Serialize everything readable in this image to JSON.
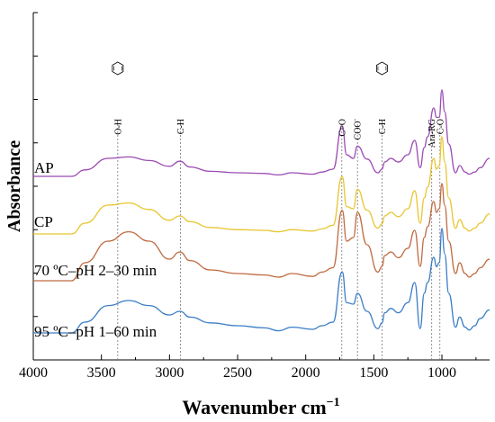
{
  "chart_data": {
    "type": "line",
    "title": "",
    "xlabel": "Wavenumber cm",
    "xlabel_superscript": "−1",
    "ylabel": "Absorbance",
    "xlim": [
      4000,
      650
    ],
    "x_inverted": true,
    "x_ticks": [
      "4000",
      "3500",
      "3000",
      "2500",
      "2000",
      "1500",
      "1000"
    ],
    "x_tick_values": [
      4000,
      3500,
      3000,
      2500,
      2000,
      1500,
      1000
    ],
    "y_ticks_labeled": false,
    "series": [
      {
        "name": "AP",
        "color": "#9b4bb3",
        "offset": 3,
        "points": [
          [
            4000,
            0.0
          ],
          [
            3720,
            0.0
          ],
          [
            3620,
            0.09
          ],
          [
            3450,
            0.25
          ],
          [
            3300,
            0.27
          ],
          [
            3150,
            0.22
          ],
          [
            3000,
            0.14
          ],
          [
            2925,
            0.21
          ],
          [
            2850,
            0.13
          ],
          [
            2700,
            0.07
          ],
          [
            2500,
            0.05
          ],
          [
            2300,
            0.04
          ],
          [
            2200,
            0.02
          ],
          [
            2100,
            0.05
          ],
          [
            1950,
            0.03
          ],
          [
            1880,
            0.06
          ],
          [
            1800,
            0.1
          ],
          [
            1732,
            0.7
          ],
          [
            1700,
            0.3
          ],
          [
            1650,
            0.25
          ],
          [
            1620,
            0.42
          ],
          [
            1550,
            0.24
          ],
          [
            1470,
            0.05
          ],
          [
            1440,
            0.1
          ],
          [
            1420,
            0.2
          ],
          [
            1375,
            0.25
          ],
          [
            1320,
            0.2
          ],
          [
            1250,
            0.3
          ],
          [
            1200,
            0.5
          ],
          [
            1160,
            0.12
          ],
          [
            1130,
            0.4
          ],
          [
            1105,
            0.55
          ],
          [
            1060,
            0.95
          ],
          [
            1040,
            0.82
          ],
          [
            1020,
            0.82
          ],
          [
            1000,
            1.2
          ],
          [
            980,
            0.9
          ],
          [
            950,
            0.45
          ],
          [
            900,
            0.05
          ],
          [
            870,
            0.15
          ],
          [
            830,
            0.06
          ],
          [
            800,
            0.03
          ],
          [
            760,
            0.06
          ],
          [
            720,
            0.12
          ],
          [
            650,
            0.25
          ]
        ]
      },
      {
        "name": "CP",
        "color": "#e8c530",
        "offset": 2,
        "points": [
          [
            4000,
            0.0
          ],
          [
            3720,
            0.0
          ],
          [
            3620,
            0.15
          ],
          [
            3450,
            0.4
          ],
          [
            3300,
            0.43
          ],
          [
            3150,
            0.34
          ],
          [
            3000,
            0.19
          ],
          [
            2925,
            0.25
          ],
          [
            2850,
            0.17
          ],
          [
            2700,
            0.09
          ],
          [
            2500,
            0.06
          ],
          [
            2300,
            0.05
          ],
          [
            2200,
            0.03
          ],
          [
            2100,
            0.06
          ],
          [
            1950,
            0.04
          ],
          [
            1880,
            0.07
          ],
          [
            1800,
            0.12
          ],
          [
            1732,
            0.8
          ],
          [
            1700,
            0.38
          ],
          [
            1650,
            0.35
          ],
          [
            1620,
            0.62
          ],
          [
            1550,
            0.33
          ],
          [
            1470,
            0.08
          ],
          [
            1440,
            0.14
          ],
          [
            1420,
            0.25
          ],
          [
            1375,
            0.3
          ],
          [
            1320,
            0.24
          ],
          [
            1250,
            0.35
          ],
          [
            1200,
            0.6
          ],
          [
            1160,
            0.15
          ],
          [
            1130,
            0.5
          ],
          [
            1105,
            0.65
          ],
          [
            1060,
            1.05
          ],
          [
            1040,
            0.9
          ],
          [
            1020,
            0.95
          ],
          [
            1000,
            1.35
          ],
          [
            980,
            1.0
          ],
          [
            950,
            0.5
          ],
          [
            900,
            0.08
          ],
          [
            870,
            0.2
          ],
          [
            830,
            0.08
          ],
          [
            800,
            0.04
          ],
          [
            760,
            0.08
          ],
          [
            720,
            0.15
          ],
          [
            650,
            0.28
          ]
        ]
      },
      {
        "name": "70 ºC–pH 2–30 min",
        "color": "#c06a40",
        "offset": 1,
        "points": [
          [
            4000,
            0.0
          ],
          [
            3720,
            0.0
          ],
          [
            3620,
            0.25
          ],
          [
            3450,
            0.55
          ],
          [
            3300,
            0.68
          ],
          [
            3150,
            0.55
          ],
          [
            3000,
            0.3
          ],
          [
            2925,
            0.4
          ],
          [
            2850,
            0.28
          ],
          [
            2700,
            0.15
          ],
          [
            2500,
            0.1
          ],
          [
            2300,
            0.08
          ],
          [
            2200,
            0.05
          ],
          [
            2100,
            0.1
          ],
          [
            1950,
            0.06
          ],
          [
            1880,
            0.12
          ],
          [
            1800,
            0.18
          ],
          [
            1732,
            0.98
          ],
          [
            1700,
            0.55
          ],
          [
            1650,
            0.6
          ],
          [
            1620,
            0.95
          ],
          [
            1550,
            0.5
          ],
          [
            1470,
            0.12
          ],
          [
            1440,
            0.2
          ],
          [
            1420,
            0.35
          ],
          [
            1375,
            0.4
          ],
          [
            1320,
            0.32
          ],
          [
            1250,
            0.45
          ],
          [
            1200,
            0.7
          ],
          [
            1160,
            0.2
          ],
          [
            1130,
            0.6
          ],
          [
            1105,
            0.75
          ],
          [
            1060,
            1.1
          ],
          [
            1040,
            0.95
          ],
          [
            1020,
            1.0
          ],
          [
            1000,
            1.35
          ],
          [
            980,
            1.05
          ],
          [
            950,
            0.55
          ],
          [
            900,
            0.1
          ],
          [
            870,
            0.25
          ],
          [
            830,
            0.1
          ],
          [
            800,
            0.05
          ],
          [
            760,
            0.1
          ],
          [
            720,
            0.18
          ],
          [
            650,
            0.3
          ]
        ]
      },
      {
        "name": "95 ºC–pH 1–60 min",
        "color": "#3a7dc6",
        "offset": 0,
        "points": [
          [
            4000,
            0.0
          ],
          [
            3720,
            0.0
          ],
          [
            3620,
            0.15
          ],
          [
            3450,
            0.38
          ],
          [
            3300,
            0.45
          ],
          [
            3150,
            0.38
          ],
          [
            3000,
            0.25
          ],
          [
            2925,
            0.3
          ],
          [
            2850,
            0.22
          ],
          [
            2700,
            0.14
          ],
          [
            2500,
            0.1
          ],
          [
            2300,
            0.07
          ],
          [
            2200,
            0.03
          ],
          [
            2100,
            0.08
          ],
          [
            1950,
            0.05
          ],
          [
            1880,
            0.1
          ],
          [
            1800,
            0.15
          ],
          [
            1732,
            0.85
          ],
          [
            1700,
            0.42
          ],
          [
            1650,
            0.4
          ],
          [
            1620,
            0.55
          ],
          [
            1550,
            0.3
          ],
          [
            1470,
            0.06
          ],
          [
            1440,
            0.14
          ],
          [
            1420,
            0.28
          ],
          [
            1375,
            0.34
          ],
          [
            1320,
            0.28
          ],
          [
            1250,
            0.42
          ],
          [
            1200,
            0.7
          ],
          [
            1160,
            0.06
          ],
          [
            1130,
            0.55
          ],
          [
            1105,
            0.7
          ],
          [
            1060,
            1.05
          ],
          [
            1040,
            0.92
          ],
          [
            1020,
            0.98
          ],
          [
            1000,
            1.45
          ],
          [
            980,
            1.1
          ],
          [
            950,
            0.55
          ],
          [
            900,
            0.08
          ],
          [
            870,
            0.22
          ],
          [
            830,
            0.08
          ],
          [
            800,
            0.04
          ],
          [
            760,
            0.1
          ],
          [
            720,
            0.2
          ],
          [
            650,
            0.32
          ]
        ]
      }
    ],
    "annotations": [
      {
        "label": "O-H",
        "wavenumber": 3380,
        "ring_icon": true
      },
      {
        "label": "C-H",
        "wavenumber": 2920,
        "ring_icon": false
      },
      {
        "label": "C=O",
        "wavenumber": 1735,
        "ring_icon": false
      },
      {
        "label": "COO",
        "superscript": "-",
        "wavenumber": 1620,
        "ring_icon": false
      },
      {
        "label": "C-H",
        "wavenumber": 1440,
        "ring_icon": true
      },
      {
        "label": "Ara-RG",
        "wavenumber": 1075,
        "ring_icon": false
      },
      {
        "label": "C-O",
        "wavenumber": 1015,
        "ring_icon": false
      }
    ],
    "grid": false,
    "legend": "inline labels on curves"
  }
}
